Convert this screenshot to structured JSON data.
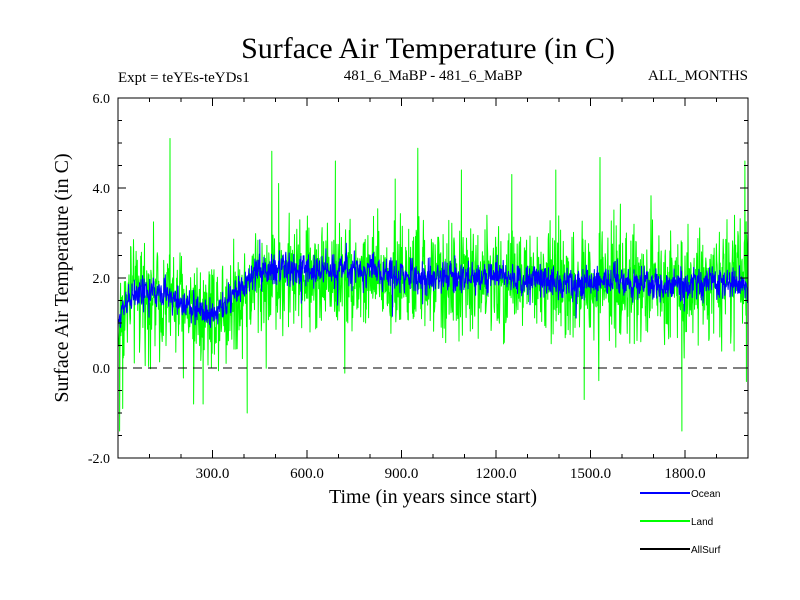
{
  "chart_data": {
    "type": "line",
    "title": "Surface Air Temperature (in C)",
    "subtitle_left": "Expt = teYEs-teYDs1",
    "subtitle_center": "481_6_MaBP - 481_6_MaBP",
    "subtitle_right": "ALL_MONTHS",
    "xlabel": "Time (in years since start)",
    "ylabel": "Surface Air Temperature (in C)",
    "xlim": [
      0,
      2000
    ],
    "ylim": [
      -2,
      6
    ],
    "x_ticks": [
      300,
      600,
      900,
      1200,
      1500,
      1800
    ],
    "x_tick_labels": [
      "300.0",
      "600.0",
      "900.0",
      "1200.0",
      "1500.0",
      "1800.0"
    ],
    "y_ticks": [
      -2,
      0,
      2,
      4,
      6
    ],
    "y_tick_labels": [
      "-2.0",
      "0.0",
      "2.0",
      "4.0",
      "6.0"
    ],
    "reference_line": {
      "y": 0,
      "style": "dashed"
    },
    "series": [
      {
        "name": "Land",
        "color": "#00ff00",
        "trend_x": [
          0,
          10,
          30,
          60,
          100,
          150,
          200,
          250,
          300,
          350,
          400,
          450,
          500,
          600,
          700,
          800,
          900,
          1000,
          1100,
          1200,
          1300,
          1400,
          1500,
          1600,
          1700,
          1800,
          1900,
          2000
        ],
        "trend_y": [
          0.6,
          1.2,
          1.5,
          1.6,
          1.65,
          1.55,
          1.45,
          1.35,
          1.3,
          1.45,
          1.75,
          1.95,
          2.05,
          2.05,
          2.1,
          2.0,
          2.0,
          1.95,
          1.95,
          2.0,
          1.9,
          1.85,
          1.9,
          1.95,
          1.85,
          1.95,
          1.95,
          1.9
        ],
        "spread": 0.85,
        "spike_points": [
          [
            5,
            -1.4
          ],
          [
            15,
            -0.9
          ],
          [
            40,
            2.7
          ],
          [
            165,
            5.1
          ],
          [
            240,
            -0.8
          ],
          [
            270,
            -0.8
          ],
          [
            410,
            -1.0
          ],
          [
            510,
            4.1
          ],
          [
            690,
            4.6
          ],
          [
            880,
            4.2
          ],
          [
            1090,
            4.4
          ],
          [
            1250,
            4.3
          ],
          [
            1390,
            4.4
          ],
          [
            1480,
            -0.7
          ],
          [
            1790,
            -1.4
          ],
          [
            1990,
            4.6
          ],
          [
            1995,
            -0.3
          ]
        ]
      },
      {
        "name": "Ocean",
        "color": "#0000ff",
        "trend_x": [
          0,
          10,
          30,
          60,
          100,
          150,
          200,
          250,
          300,
          350,
          400,
          450,
          500,
          600,
          700,
          800,
          900,
          1000,
          1100,
          1200,
          1300,
          1400,
          1500,
          1600,
          1700,
          1800,
          1900,
          2000
        ],
        "trend_y": [
          0.8,
          1.3,
          1.55,
          1.65,
          1.7,
          1.65,
          1.45,
          1.3,
          1.2,
          1.45,
          1.85,
          2.15,
          2.2,
          2.15,
          2.2,
          2.15,
          2.05,
          2.0,
          2.0,
          2.05,
          1.95,
          1.9,
          1.9,
          1.95,
          1.85,
          1.85,
          1.9,
          1.85
        ],
        "spread": 0.25,
        "spike_points": [
          [
            450,
            2.85
          ],
          [
            660,
            2.65
          ],
          [
            990,
            2.45
          ]
        ]
      },
      {
        "name": "AllSurf",
        "color": "#000000",
        "trend_x": [],
        "trend_y": [],
        "spread": 0,
        "spike_points": []
      }
    ],
    "legend": {
      "placement": "bottom-right",
      "entries": [
        {
          "label": "Ocean",
          "color": "#0000ff"
        },
        {
          "label": "Land",
          "color": "#00ff00"
        },
        {
          "label": "AllSurf",
          "color": "#000000"
        }
      ]
    }
  }
}
